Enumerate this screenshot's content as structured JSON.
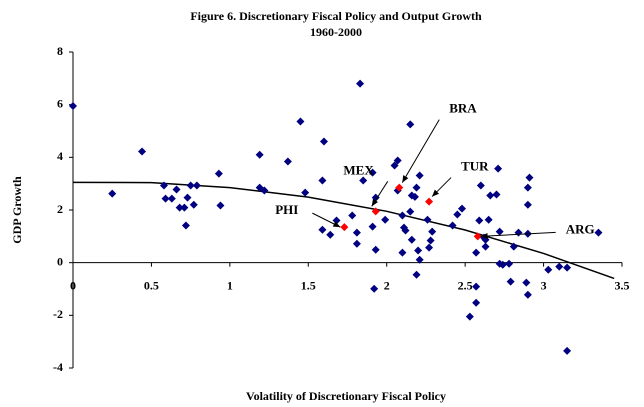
{
  "chart_data": {
    "type": "scatter",
    "title": "Figure 6. Discretionary Fiscal Policy and Output Growth",
    "subtitle": "1960-2000",
    "x_label": "Volatility of Discretionary Fiscal Policy",
    "y_label": "GDP Growth",
    "xlim": [
      0,
      3.5
    ],
    "ylim": [
      -4,
      8
    ],
    "xticks": [
      0,
      0.5,
      1,
      1.5,
      2,
      2.5,
      3,
      3.5
    ],
    "yticks": [
      -4,
      -2,
      0,
      2,
      4,
      6,
      8
    ],
    "grid": false,
    "series": [
      {
        "color": "#000080",
        "x": [
          0,
          0.25,
          0.44,
          0.58,
          0.59,
          0.63,
          0.66,
          0.68,
          0.71,
          0.73,
          0.72,
          0.75,
          0.77,
          0.79,
          0.93,
          0.94,
          1.19,
          1.22,
          1.19,
          1.37,
          1.45,
          1.48,
          1.59,
          1.6,
          1.59,
          1.64,
          1.68,
          1.78,
          1.81,
          1.81,
          1.83,
          1.85,
          1.91,
          1.93,
          1.91,
          1.93,
          1.92,
          1.99,
          2.05,
          2.07,
          2.07,
          2.1,
          2.11,
          2.1,
          2.12,
          2.15,
          2.15,
          2.16,
          2.16,
          2.18,
          2.19,
          2.21,
          2.2,
          2.26,
          2.27,
          2.28,
          2.29,
          2.19,
          2.21,
          2.42,
          2.45,
          2.48,
          2.53,
          2.57,
          2.57,
          2.57,
          2.59,
          2.6,
          2.62,
          2.63,
          2.63,
          2.65,
          2.66,
          2.71,
          2.7,
          2.72,
          2.72,
          2.74,
          2.78,
          2.79,
          2.81,
          2.84,
          2.89,
          2.9,
          2.9,
          2.9,
          2.91,
          2.9,
          3.03,
          3.1,
          3.15,
          3.15,
          3.35
        ],
        "values": [
          5.95,
          2.62,
          4.22,
          2.93,
          2.43,
          2.43,
          2.78,
          2.09,
          2.09,
          2.47,
          1.41,
          2.93,
          2.2,
          2.93,
          3.38,
          2.17,
          2.85,
          2.74,
          4.1,
          3.84,
          5.36,
          2.66,
          3.12,
          4.6,
          1.25,
          1.06,
          1.6,
          1.79,
          1.14,
          0.72,
          6.8,
          3.12,
          1.37,
          0.49,
          3.42,
          2.47,
          -0.99,
          1.63,
          3.69,
          3.88,
          2.74,
          1.79,
          1.33,
          0.38,
          1.22,
          5.25,
          1.94,
          2.55,
          0.87,
          2.5,
          2.85,
          3.31,
          0.46,
          1.63,
          0.57,
          0.84,
          1.18,
          -0.46,
          0.11,
          1.41,
          1.83,
          2.05,
          -2.05,
          -1.52,
          -0.91,
          0.38,
          1.6,
          2.93,
          0.95,
          0.87,
          0.61,
          1.63,
          2.55,
          3.57,
          2.59,
          -0.04,
          1.18,
          -0.08,
          -0.04,
          -0.72,
          0.61,
          1.14,
          -0.76,
          -1.22,
          1.1,
          2.2,
          3.23,
          2.85,
          -0.27,
          -0.15,
          -0.19,
          -3.35,
          1.14
        ]
      },
      {
        "color": "#ff0000",
        "x": [
          1.73,
          1.93,
          2.08,
          2.27,
          2.58
        ],
        "values": [
          1.35,
          1.95,
          2.85,
          2.32,
          1.0
        ],
        "labels": [
          "PHI",
          "MEX",
          "BRA",
          "TUR",
          "ARG"
        ]
      }
    ],
    "trend": {
      "type": "line",
      "color": "#000000",
      "x": [
        0,
        0.5,
        1,
        1.5,
        2,
        2.5,
        3,
        3.45
      ],
      "values": [
        3.05,
        3.04,
        2.85,
        2.49,
        1.95,
        1.24,
        0.35,
        -0.6
      ]
    }
  }
}
